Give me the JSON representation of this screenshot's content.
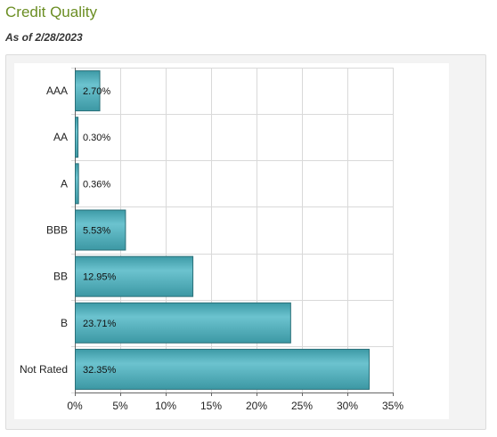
{
  "header": {
    "title": "Credit Quality",
    "as_of": "As of 2/28/2023"
  },
  "colors": {
    "title": "#6b8e23",
    "bar_fill": "#4fb0bd",
    "bar_stroke": "#2a6f78",
    "grid": "#d9d9d9"
  },
  "chart_data": {
    "type": "bar",
    "orientation": "horizontal",
    "categories": [
      "AAA",
      "AA",
      "A",
      "BBB",
      "BB",
      "B",
      "Not Rated"
    ],
    "values": [
      2.7,
      0.3,
      0.36,
      5.53,
      12.95,
      23.71,
      32.35
    ],
    "data_labels": [
      "2.70%",
      "0.30%",
      "0.36%",
      "5.53%",
      "12.95%",
      "23.71%",
      "32.35%"
    ],
    "xlim": [
      0,
      35
    ],
    "xticks": [
      0,
      5,
      10,
      15,
      20,
      25,
      30,
      35
    ],
    "xtick_labels": [
      "0%",
      "5%",
      "10%",
      "15%",
      "20%",
      "25%",
      "30%",
      "35%"
    ],
    "grid": true,
    "legend": false
  }
}
